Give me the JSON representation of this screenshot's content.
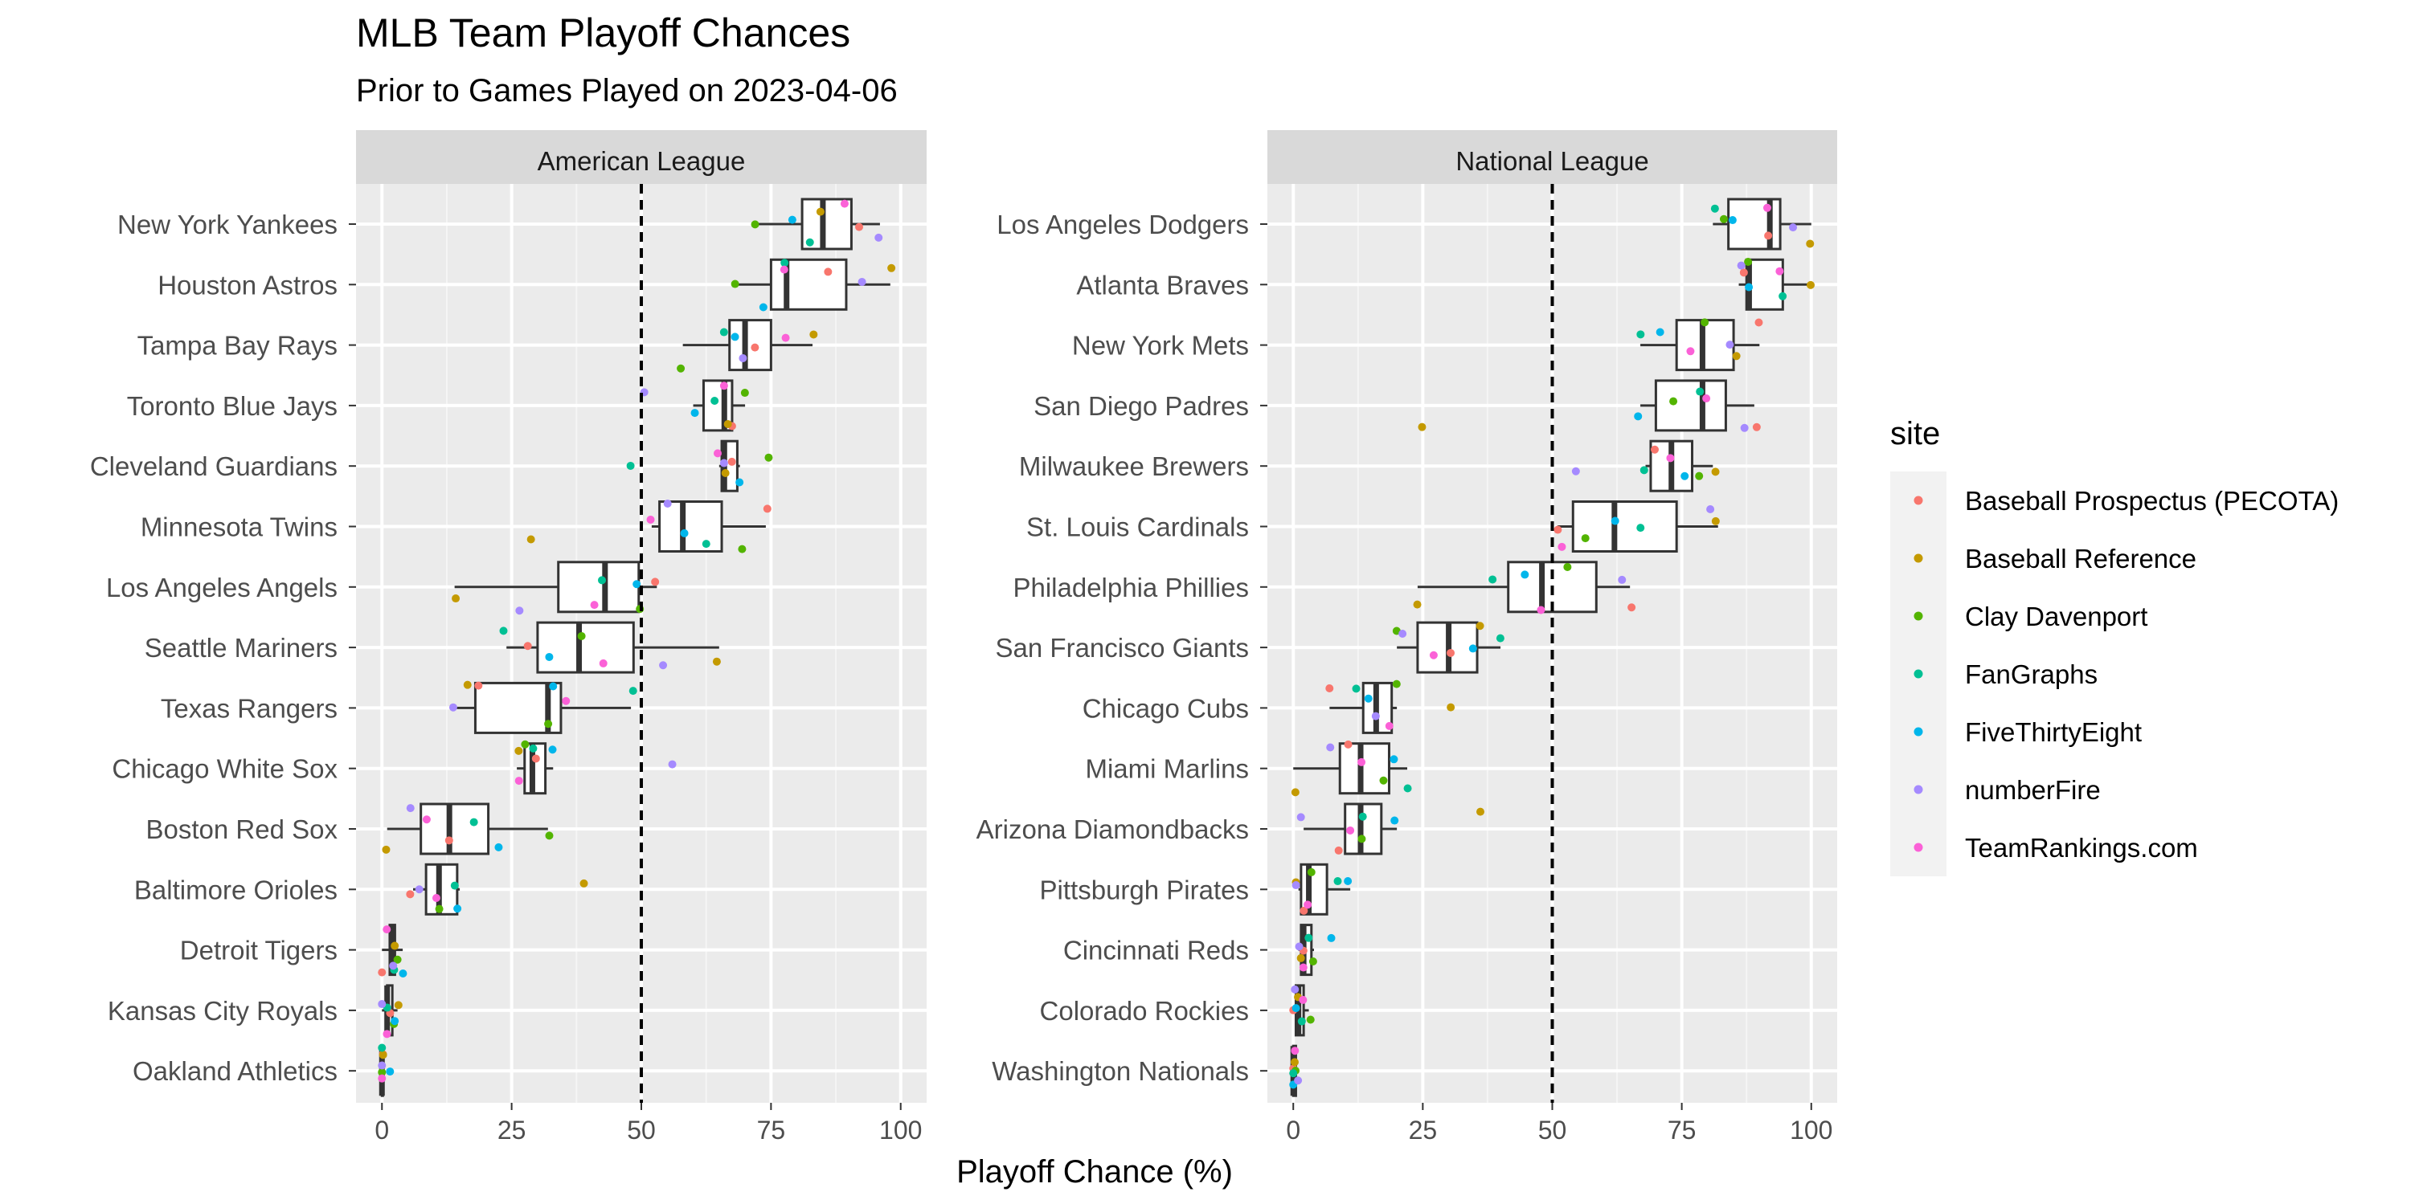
{
  "chart_data": {
    "type": "boxplot",
    "title": "MLB Team Playoff Chances",
    "subtitle": "Prior to Games Played on 2023-04-06",
    "xlabel": "Playoff Chance (%)",
    "xlim": [
      0,
      100
    ],
    "x_ticks": [
      "0",
      "25",
      "50",
      "75",
      "100"
    ],
    "reference_line": 50,
    "grid": true,
    "legend_position": "right",
    "legend": {
      "title": "site",
      "items": [
        {
          "name": "Baseball Prospectus (PECOTA)",
          "color": "#F8766D"
        },
        {
          "name": "Baseball Reference",
          "color": "#C49A00"
        },
        {
          "name": "Clay Davenport",
          "color": "#53B400"
        },
        {
          "name": "FanGraphs",
          "color": "#00C094"
        },
        {
          "name": "FiveThirtyEight",
          "color": "#00B6EB"
        },
        {
          "name": "numberFire",
          "color": "#A58AFF"
        },
        {
          "name": "TeamRankings.com",
          "color": "#FB61D7"
        }
      ]
    },
    "panels": [
      {
        "name": "American League",
        "teams": [
          {
            "team": "New York Yankees",
            "values": [
              92,
              85,
              72,
              83,
              79,
              96,
              89
            ]
          },
          {
            "team": "Houston Astros",
            "values": [
              86,
              98,
              68,
              78,
              73,
              93,
              77
            ]
          },
          {
            "team": "Tampa Bay Rays",
            "values": [
              72,
              83,
              58,
              66,
              68,
              70,
              78
            ]
          },
          {
            "team": "Toronto Blue Jays",
            "values": [
              68,
              67,
              70,
              64,
              60,
              51,
              66
            ]
          },
          {
            "team": "Cleveland Guardians",
            "values": [
              68,
              66,
              74,
              48,
              69,
              66,
              65
            ]
          },
          {
            "team": "Minnesota Twins",
            "values": [
              74,
              29,
              69,
              62,
              58,
              55,
              52
            ]
          },
          {
            "team": "Los Angeles Angels",
            "values": [
              53,
              14,
              50,
              43,
              49,
              27,
              41
            ]
          },
          {
            "team": "Seattle Mariners",
            "values": [
              28,
              65,
              38,
              24,
              32,
              54,
              43
            ]
          },
          {
            "team": "Texas Rangers",
            "values": [
              19,
              17,
              32,
              48,
              33,
              14,
              36
            ]
          },
          {
            "team": "Chicago White Sox",
            "values": [
              30,
              26,
              28,
              29,
              33,
              56,
              27
            ]
          },
          {
            "team": "Boston Red Sox",
            "values": [
              13,
              1,
              32,
              18,
              23,
              6,
              9
            ]
          },
          {
            "team": "Baltimore Orioles",
            "values": [
              6,
              39,
              11,
              14,
              15,
              7,
              10
            ]
          },
          {
            "team": "Detroit Tigers",
            "values": [
              0,
              2,
              3,
              2,
              4,
              2,
              1
            ]
          },
          {
            "team": "Kansas City Royals",
            "values": [
              1,
              3,
              2,
              1,
              2,
              0,
              1
            ]
          },
          {
            "team": "Oakland Athletics",
            "values": [
              0,
              0,
              0,
              0,
              1,
              0,
              0
            ]
          }
        ]
      },
      {
        "name": "National League",
        "teams": [
          {
            "team": "Los Angeles Dodgers",
            "values": [
              92,
              100,
              83,
              81,
              85,
              96,
              92
            ]
          },
          {
            "team": "Atlanta Braves",
            "values": [
              87,
              100,
              88,
              95,
              88,
              86,
              94
            ]
          },
          {
            "team": "New York Mets",
            "values": [
              90,
              86,
              79,
              67,
              71,
              84,
              77
            ]
          },
          {
            "team": "San Diego Padres",
            "values": [
              89,
              25,
              73,
              79,
              67,
              87,
              80
            ]
          },
          {
            "team": "Milwaukee Brewers",
            "values": [
              70,
              81,
              78,
              68,
              76,
              54,
              73
            ]
          },
          {
            "team": "St. Louis Cardinals",
            "values": [
              51,
              82,
              56,
              67,
              62,
              81,
              52
            ]
          },
          {
            "team": "Philadelphia Phillies",
            "values": [
              65,
              24,
              53,
              38,
              45,
              64,
              48
            ]
          },
          {
            "team": "San Francisco Giants",
            "values": [
              30,
              36,
              20,
              40,
              35,
              21,
              27
            ]
          },
          {
            "team": "Chicago Cubs",
            "values": [
              7,
              31,
              20,
              12,
              15,
              16,
              18
            ]
          },
          {
            "team": "Miami Marlins",
            "values": [
              11,
              0,
              17,
              22,
              20,
              7,
              13
            ]
          },
          {
            "team": "Arizona Diamondbacks",
            "values": [
              9,
              36,
              13,
              14,
              20,
              2,
              11
            ]
          },
          {
            "team": "Pittsburgh Pirates",
            "values": [
              2,
              1,
              4,
              9,
              11,
              1,
              3
            ]
          },
          {
            "team": "Cincinnati Reds",
            "values": [
              2,
              1,
              4,
              3,
              7,
              1,
              2
            ]
          },
          {
            "team": "Colorado Rockies",
            "values": [
              0,
              1,
              3,
              2,
              1,
              0,
              2
            ]
          },
          {
            "team": "Washington Nationals",
            "values": [
              0,
              0,
              1,
              0,
              0,
              1,
              0
            ]
          }
        ]
      }
    ]
  }
}
